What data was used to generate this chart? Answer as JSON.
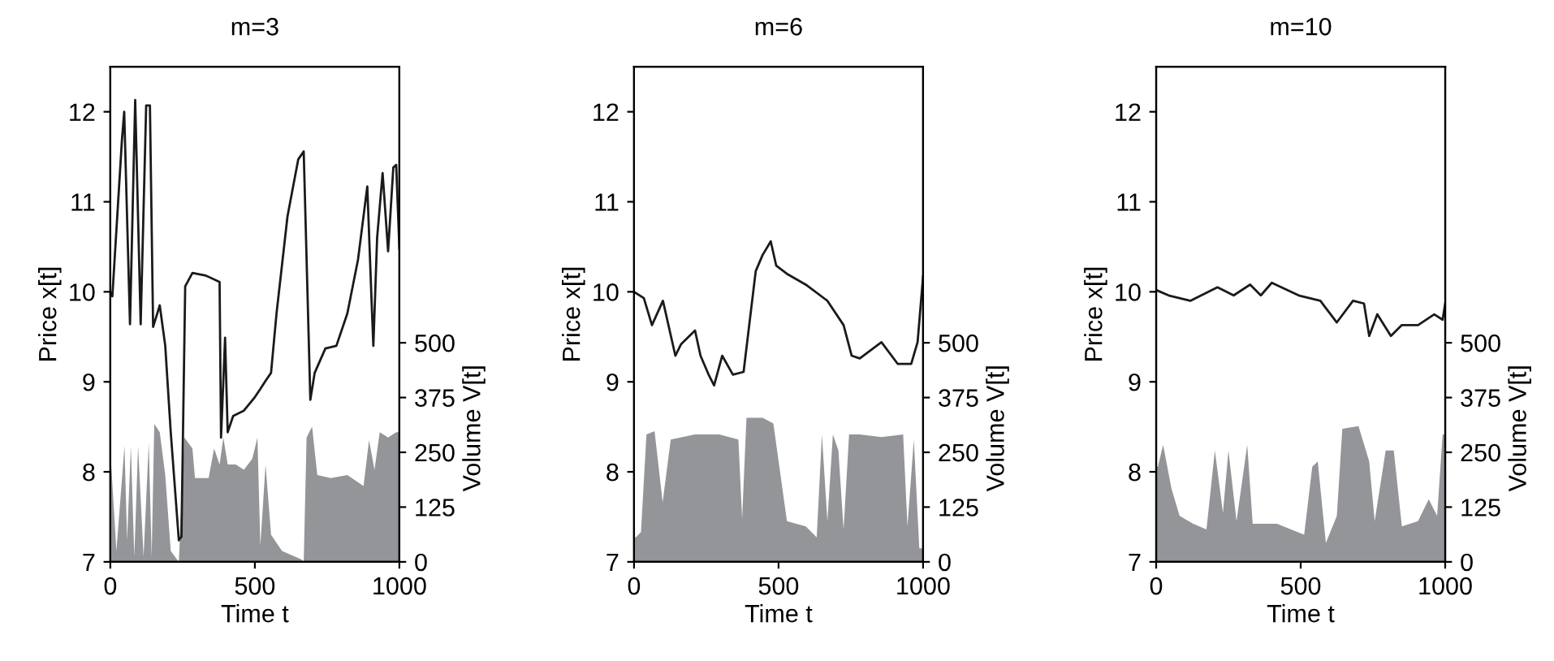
{
  "chart_data": [
    {
      "type": "line",
      "title": "m=3",
      "xlabel": "Time t",
      "ylabel": "Price x[t]",
      "y2label": "Volume V[t]",
      "xlim": [
        0,
        1000
      ],
      "xticks": [
        0,
        500,
        1000
      ],
      "ylim": [
        7,
        12.5
      ],
      "yticks": [
        7,
        8,
        9,
        10,
        11,
        12
      ],
      "y2lim": [
        0,
        1130
      ],
      "y2ticks": [
        0,
        125,
        250,
        375,
        500
      ],
      "grid": false,
      "legend": false,
      "series": [
        {
          "type": "area",
          "axis": "y2",
          "color": "#939598",
          "x": [
            0,
            2,
            21,
            49,
            58,
            71,
            83,
            96,
            115,
            133,
            143,
            152,
            171,
            190,
            209,
            237,
            256,
            284,
            293,
            340,
            359,
            378,
            391,
            406,
            434,
            462,
            491,
            509,
            519,
            537,
            556,
            594,
            660,
            669,
            679,
            698,
            716,
            763,
            820,
            876,
            895,
            914,
            932,
            961,
            989,
            1000
          ],
          "values": [
            235,
            235,
            25,
            265,
            49,
            265,
            12,
            265,
            12,
            272,
            12,
            315,
            296,
            198,
            25,
            0,
            284,
            259,
            191,
            191,
            259,
            222,
            284,
            222,
            222,
            210,
            235,
            284,
            37,
            222,
            62,
            25,
            6,
            0,
            284,
            309,
            198,
            191,
            198,
            173,
            278,
            210,
            296,
            284,
            296,
            296
          ]
        },
        {
          "axis": "y",
          "color": "#1a1a1a",
          "x": [
            0,
            7,
            40,
            48,
            68,
            86,
            105,
            124,
            137,
            148,
            171,
            190,
            209,
            237,
            246,
            259,
            284,
            331,
            378,
            383,
            397,
            406,
            425,
            462,
            500,
            519,
            537,
            556,
            575,
            613,
            650,
            669,
            692,
            707,
            744,
            782,
            820,
            857,
            889,
            904,
            910,
            923,
            942,
            961,
            979,
            989,
            1000
          ],
          "values": [
            10.0,
            9.95,
            11.68,
            12.0,
            9.64,
            12.13,
            9.64,
            12.07,
            12.07,
            9.61,
            9.85,
            9.4,
            8.44,
            7.24,
            7.28,
            10.06,
            10.21,
            10.18,
            10.11,
            8.38,
            9.49,
            8.44,
            8.62,
            8.68,
            8.83,
            8.92,
            9.01,
            9.1,
            9.76,
            10.84,
            11.47,
            11.56,
            8.8,
            9.1,
            9.37,
            9.4,
            9.76,
            10.36,
            11.17,
            9.88,
            9.4,
            10.6,
            11.32,
            10.45,
            11.38,
            11.41,
            10.48
          ]
        }
      ]
    },
    {
      "type": "line",
      "title": "m=6",
      "xlabel": "Time t",
      "ylabel": "Price x[t]",
      "y2label": "Volume V[t]",
      "xlim": [
        0,
        1000
      ],
      "xticks": [
        0,
        500,
        1000
      ],
      "ylim": [
        7,
        12.5
      ],
      "yticks": [
        7,
        8,
        9,
        10,
        11,
        12
      ],
      "y2lim": [
        0,
        1130
      ],
      "y2ticks": [
        0,
        125,
        250,
        375,
        500
      ],
      "grid": false,
      "legend": false,
      "series": [
        {
          "type": "area",
          "axis": "y2",
          "color": "#939598",
          "x": [
            0,
            6,
            24,
            43,
            71,
            99,
            127,
            211,
            295,
            361,
            374,
            389,
            445,
            482,
            529,
            594,
            632,
            650,
            669,
            688,
            707,
            725,
            744,
            781,
            856,
            931,
            946,
            968,
            987,
            1000
          ],
          "values": [
            56,
            56,
            68,
            291,
            298,
            136,
            279,
            291,
            291,
            279,
            99,
            329,
            329,
            316,
            93,
            81,
            56,
            291,
            93,
            291,
            254,
            74,
            291,
            291,
            285,
            291,
            81,
            279,
            31,
            31
          ]
        },
        {
          "axis": "y",
          "color": "#1a1a1a",
          "x": [
            0,
            34,
            62,
            100,
            143,
            163,
            211,
            230,
            258,
            277,
            305,
            342,
            379,
            421,
            445,
            473,
            492,
            529,
            594,
            669,
            725,
            753,
            781,
            856,
            912,
            959,
            981,
            1000
          ],
          "values": [
            10.0,
            9.93,
            9.63,
            9.9,
            9.29,
            9.42,
            9.57,
            9.29,
            9.08,
            8.96,
            9.29,
            9.08,
            9.11,
            10.23,
            10.41,
            10.56,
            10.29,
            10.2,
            10.08,
            9.9,
            9.63,
            9.29,
            9.26,
            9.44,
            9.2,
            9.2,
            9.44,
            10.17
          ]
        }
      ]
    },
    {
      "type": "line",
      "title": "m=10",
      "xlabel": "Time t",
      "ylabel": "Price x[t]",
      "y2label": "Volume V[t]",
      "xlim": [
        0,
        1000
      ],
      "xticks": [
        0,
        500,
        1000
      ],
      "ylim": [
        7,
        12.5
      ],
      "yticks": [
        7,
        8,
        9,
        10,
        11,
        12
      ],
      "y2lim": [
        0,
        1130
      ],
      "y2ticks": [
        0,
        125,
        250,
        375,
        500
      ],
      "grid": false,
      "legend": false,
      "series": [
        {
          "type": "area",
          "axis": "y2",
          "color": "#939598",
          "x": [
            0,
            6,
            24,
            53,
            81,
            128,
            174,
            203,
            231,
            250,
            278,
            315,
            334,
            418,
            512,
            540,
            559,
            587,
            625,
            644,
            700,
            737,
            756,
            794,
            822,
            850,
            906,
            943,
            972,
            991,
            1000
          ],
          "values": [
            217,
            217,
            267,
            167,
            105,
            87,
            74,
            254,
            112,
            254,
            93,
            267,
            87,
            87,
            62,
            217,
            229,
            43,
            105,
            304,
            310,
            229,
            93,
            254,
            254,
            81,
            93,
            143,
            105,
            291,
            291
          ]
        },
        {
          "axis": "y",
          "color": "#1a1a1a",
          "x": [
            0,
            43,
            118,
            212,
            268,
            325,
            362,
            400,
            493,
            568,
            587,
            625,
            681,
            719,
            737,
            765,
            812,
            850,
            906,
            962,
            991,
            1000
          ],
          "values": [
            10.02,
            9.96,
            9.9,
            10.05,
            9.96,
            10.08,
            9.96,
            10.1,
            9.96,
            9.9,
            9.82,
            9.66,
            9.9,
            9.87,
            9.51,
            9.75,
            9.51,
            9.63,
            9.63,
            9.75,
            9.69,
            9.87
          ]
        }
      ]
    }
  ]
}
